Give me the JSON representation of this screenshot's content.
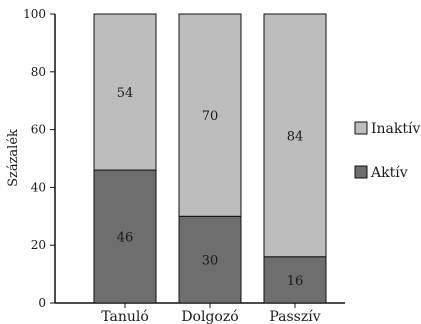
{
  "chart_data": {
    "type": "bar",
    "stacked": true,
    "categories": [
      "Tanuló",
      "Dolgozó",
      "Passzív"
    ],
    "series": [
      {
        "name": "Aktív",
        "values": [
          46,
          30,
          16
        ],
        "color": "#6e6e6e"
      },
      {
        "name": "Inaktív",
        "values": [
          54,
          70,
          84
        ],
        "color": "#bdbdbd"
      }
    ],
    "title": "",
    "xlabel": "",
    "ylabel": "Százalék",
    "ylim": [
      0,
      100
    ],
    "yticks": [
      0,
      20,
      40,
      60,
      80,
      100
    ],
    "grid": false,
    "legend": "right",
    "legend_order": [
      "Inaktív",
      "Aktív"
    ]
  }
}
